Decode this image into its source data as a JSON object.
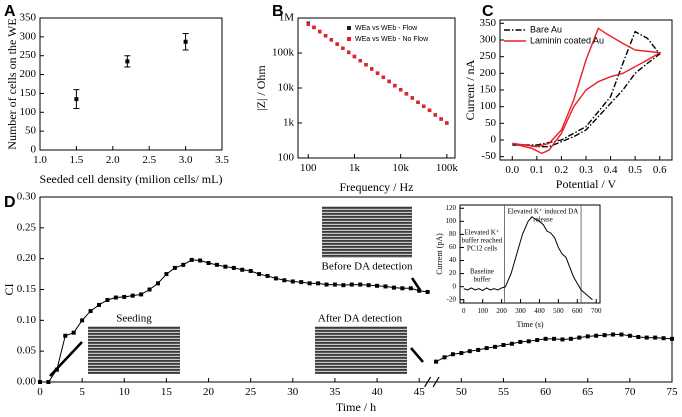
{
  "chart_data": [
    {
      "type": "scatter",
      "panel": "A",
      "x": [
        1.5,
        2.2,
        3.0
      ],
      "values": [
        135,
        235,
        287
      ],
      "errors": [
        25,
        15,
        22
      ],
      "color": "#000000",
      "marker": "square",
      "xlim": [
        1.0,
        3.5
      ],
      "xticks": [
        {
          "value": 1,
          "label": "1.0"
        },
        1.5,
        {
          "value": 2,
          "label": "2.0"
        },
        2.5,
        {
          "value": 3,
          "label": "3.0"
        },
        3.5
      ],
      "ylim": [
        0,
        350
      ],
      "yticks": [
        0,
        50,
        100,
        150,
        200,
        250,
        300,
        350
      ],
      "xlabel": "Seeded  cell density (milion cells/ mL)",
      "ylabel": "Number of cells on the WE"
    },
    {
      "type": "scatter",
      "panel": "B",
      "xscale": "log",
      "yscale": "log",
      "legend": "upper right",
      "x": [
        100,
        133,
        178,
        237,
        316,
        422,
        562,
        750,
        1000,
        1334,
        1778,
        2371,
        3162,
        4217,
        5623,
        7499,
        10000,
        13335,
        17783,
        23714,
        31623,
        42170,
        56234,
        74989,
        100000
      ],
      "series": [
        {
          "name": "WEa vs WEb - Flow",
          "color": "#1a1a1a",
          "marker": "square",
          "values": [
            708000,
            538000,
            410000,
            312000,
            237000,
            180000,
            137000,
            104000,
            79400,
            60400,
            46000,
            35000,
            26600,
            20200,
            15400,
            11700,
            8900,
            6800,
            5200,
            3900,
            3000,
            2300,
            1700,
            1300,
            1000
          ]
        },
        {
          "name": "WEa vs WEb - No Flow",
          "color": "#e8202a",
          "marker": "square",
          "values": [
            660000,
            538000,
            410000,
            312000,
            237000,
            180000,
            137000,
            104000,
            79400,
            60400,
            46000,
            35000,
            26600,
            20200,
            15400,
            11700,
            8900,
            6800,
            5200,
            3900,
            3000,
            2300,
            1700,
            1300,
            1000
          ]
        }
      ],
      "xlim": [
        60,
        150000
      ],
      "xticks": [
        100,
        {
          "value": 1000,
          "label": "1k"
        },
        {
          "value": 10000,
          "label": "10k"
        },
        {
          "value": 100000,
          "label": "100k"
        }
      ],
      "ylim": [
        100,
        1000000
      ],
      "yticks": [
        100,
        {
          "value": 1000,
          "label": "1k"
        },
        {
          "value": 10000,
          "label": "10k"
        },
        {
          "value": 100000,
          "label": "100k"
        },
        {
          "value": 1000000,
          "label": "1M"
        }
      ],
      "xlabel": "Frequency / Hz",
      "ylabel": "|Z| / Ohm"
    },
    {
      "type": "line",
      "panel": "C",
      "legend": "upper left",
      "series": [
        {
          "name": "Bare Au",
          "color": "#000000",
          "linestyle": "dashdot",
          "x": [
            0,
            0.1,
            0.2,
            0.3,
            0.4,
            0.45,
            0.5,
            0.55,
            0.6,
            0.55,
            0.5,
            0.45,
            0.4,
            0.35,
            0.3,
            0.25,
            0.2,
            0.15,
            0.1,
            0.05,
            0
          ],
          "values": [
            -15,
            -15,
            0,
            40,
            130,
            230,
            325,
            305,
            258,
            230,
            200,
            150,
            110,
            70,
            30,
            10,
            -5,
            -20,
            -20,
            -15,
            -15
          ]
        },
        {
          "name": "Laminin coated Au",
          "color": "#e8202a",
          "linestyle": "solid",
          "x": [
            0,
            0.1,
            0.15,
            0.2,
            0.25,
            0.3,
            0.35,
            0.38,
            0.45,
            0.5,
            0.6,
            0.55,
            0.5,
            0.45,
            0.4,
            0.35,
            0.3,
            0.25,
            0.2,
            0.15,
            0.12,
            0.08,
            0.05,
            0
          ],
          "values": [
            -10,
            -20,
            -10,
            30,
            120,
            240,
            335,
            320,
            290,
            270,
            262,
            240,
            220,
            200,
            190,
            175,
            150,
            100,
            20,
            -30,
            -40,
            -25,
            -20,
            -10
          ]
        }
      ],
      "xlim": [
        -0.05,
        0.65
      ],
      "xticks": [
        {
          "value": 0,
          "label": "0.0"
        },
        0.1,
        0.2,
        0.3,
        0.4,
        0.5,
        0.6
      ],
      "ylim": [
        -60,
        360
      ],
      "yticks": [
        -50,
        0,
        50,
        100,
        150,
        200,
        250,
        300,
        350
      ],
      "xlabel": "Potential / V",
      "ylabel": "Current / nA"
    },
    {
      "type": "line",
      "panel": "D",
      "color": "#000000",
      "marker": "square",
      "x": [
        0,
        1,
        2,
        3,
        4,
        5,
        6,
        7,
        8,
        9,
        10,
        11,
        12,
        13,
        14,
        15,
        16,
        17,
        18,
        19,
        20,
        21,
        22,
        23,
        24,
        25,
        26,
        27,
        28,
        29,
        30,
        31,
        32,
        33,
        34,
        35,
        36,
        37,
        38,
        39,
        40,
        41,
        42,
        43,
        44,
        45,
        46,
        46.5,
        47,
        48,
        49,
        50,
        51,
        52,
        53,
        54,
        55,
        56,
        57,
        58,
        59,
        60,
        61,
        62,
        63,
        64,
        65,
        66,
        67,
        68,
        69,
        70,
        71,
        72,
        73,
        74,
        75
      ],
      "values": [
        0,
        0,
        0.02,
        0.075,
        0.08,
        0.1,
        0.115,
        0.125,
        0.133,
        0.137,
        0.138,
        0.14,
        0.142,
        0.15,
        0.16,
        0.175,
        0.185,
        0.19,
        0.198,
        0.197,
        0.193,
        0.19,
        0.187,
        0.185,
        0.182,
        0.18,
        0.175,
        0.172,
        0.168,
        0.165,
        0.163,
        0.162,
        0.16,
        0.16,
        0.158,
        0.158,
        0.157,
        0.158,
        0.158,
        0.157,
        0.156,
        0.155,
        0.153,
        0.152,
        0.152,
        0.148,
        0.146,
        null,
        0.033,
        0.04,
        0.045,
        0.047,
        0.05,
        0.052,
        0.055,
        0.057,
        0.06,
        0.062,
        0.065,
        0.066,
        0.068,
        0.07,
        0.07,
        0.069,
        0.07,
        0.072,
        0.074,
        0.075,
        0.076,
        0.077,
        0.077,
        0.075,
        0.073,
        0.072,
        0.072,
        0.071,
        0.07
      ],
      "x_break": [
        46,
        47
      ],
      "xlim": [
        0,
        75
      ],
      "xticks": [
        0,
        5,
        10,
        15,
        20,
        25,
        30,
        35,
        40,
        45,
        50,
        55,
        60,
        65,
        70,
        75
      ],
      "ylim": [
        0,
        0.3
      ],
      "yticks": [
        {
          "value": 0,
          "label": "0.00"
        },
        0.05,
        {
          "value": 0.1,
          "label": "0.10"
        },
        0.15,
        {
          "value": 0.2,
          "label": "0.20"
        },
        0.25,
        {
          "value": 0.3,
          "label": "0.30"
        }
      ],
      "xlabel": "Time / h",
      "ylabel": "CI",
      "annotations": [
        "Seeding",
        "Before DA detection",
        "After DA detection"
      ]
    },
    {
      "type": "line",
      "color": "#000000",
      "x": [
        0,
        20,
        40,
        60,
        80,
        100,
        120,
        140,
        160,
        180,
        200,
        220,
        250,
        280,
        310,
        340,
        360,
        380,
        400,
        420,
        440,
        460,
        480,
        500,
        520,
        540,
        560,
        580,
        600,
        620,
        640,
        660,
        680
      ],
      "values": [
        -3,
        -5,
        -2,
        -5,
        -3,
        -6,
        -2,
        -5,
        -3,
        -5,
        -2,
        0,
        20,
        50,
        80,
        100,
        107,
        103,
        100,
        95,
        85,
        82,
        75,
        60,
        50,
        45,
        30,
        15,
        5,
        -5,
        -10,
        -15,
        -20
      ],
      "vlines": [
        215,
        620
      ],
      "xlim": [
        -20,
        720
      ],
      "xticks": [
        0,
        100,
        200,
        300,
        400,
        500,
        600,
        700
      ],
      "ylim": [
        -25,
        125
      ],
      "yticks": [
        -20,
        0,
        20,
        40,
        60,
        80,
        100,
        120
      ],
      "xlabel": "Time (s)",
      "ylabel": "Current (pA)",
      "annotations": [
        [
          "Baseline",
          "buffer"
        ],
        [
          "Elevated K⁺",
          "buffer reached",
          "PC12 cells"
        ],
        [
          "Elevated K⁺ induced DA",
          "release"
        ]
      ]
    }
  ]
}
